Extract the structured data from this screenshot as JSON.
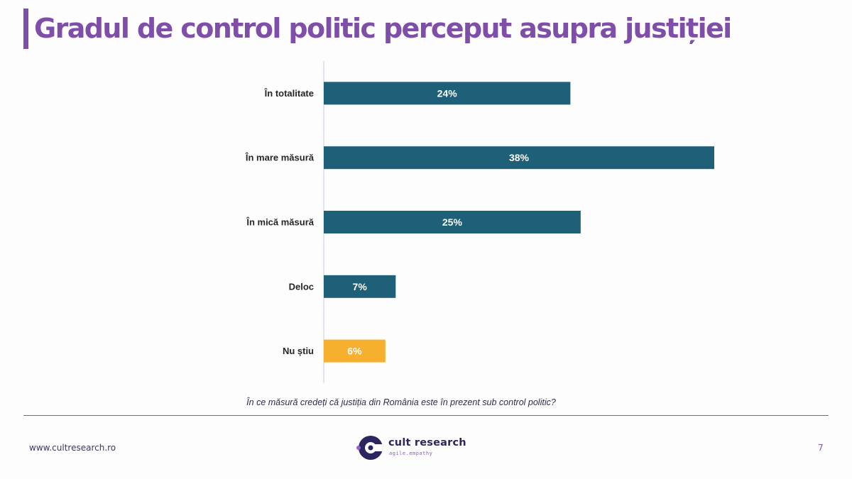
{
  "header": {
    "title": "Gradul de control politic perceput asupra justiției"
  },
  "chart_data": {
    "type": "bar",
    "orientation": "horizontal",
    "title": "Gradul de control politic perceput asupra justiției",
    "categories": [
      "În totalitate",
      "În mare măsură",
      "În mică măsură",
      "Deloc",
      "Nu știu"
    ],
    "values": [
      24,
      38,
      25,
      7,
      6
    ],
    "value_labels": [
      "24%",
      "38%",
      "25%",
      "7%",
      "6%"
    ],
    "colors": [
      "#1f6079",
      "#1f6079",
      "#1f6079",
      "#1f6079",
      "#f6b02d"
    ],
    "unit": "%",
    "xlabel": "În ce măsură credeți că justiția din România este în prezent sub control politic?",
    "ylabel": "",
    "xlim": [
      0,
      38
    ],
    "grid": false,
    "legend": "none"
  },
  "footer": {
    "question": "În ce măsură credeți că justiția din România este în prezent sub control politic?",
    "website": "www.cultresearch.ro",
    "page_number": "7",
    "logo_name": "cult research",
    "logo_tagline": "agile.empathy"
  },
  "colors": {
    "accent": "#7f4ea8",
    "bar": "#1f6079",
    "highlight": "#f6b02d",
    "navy": "#2b2660"
  }
}
